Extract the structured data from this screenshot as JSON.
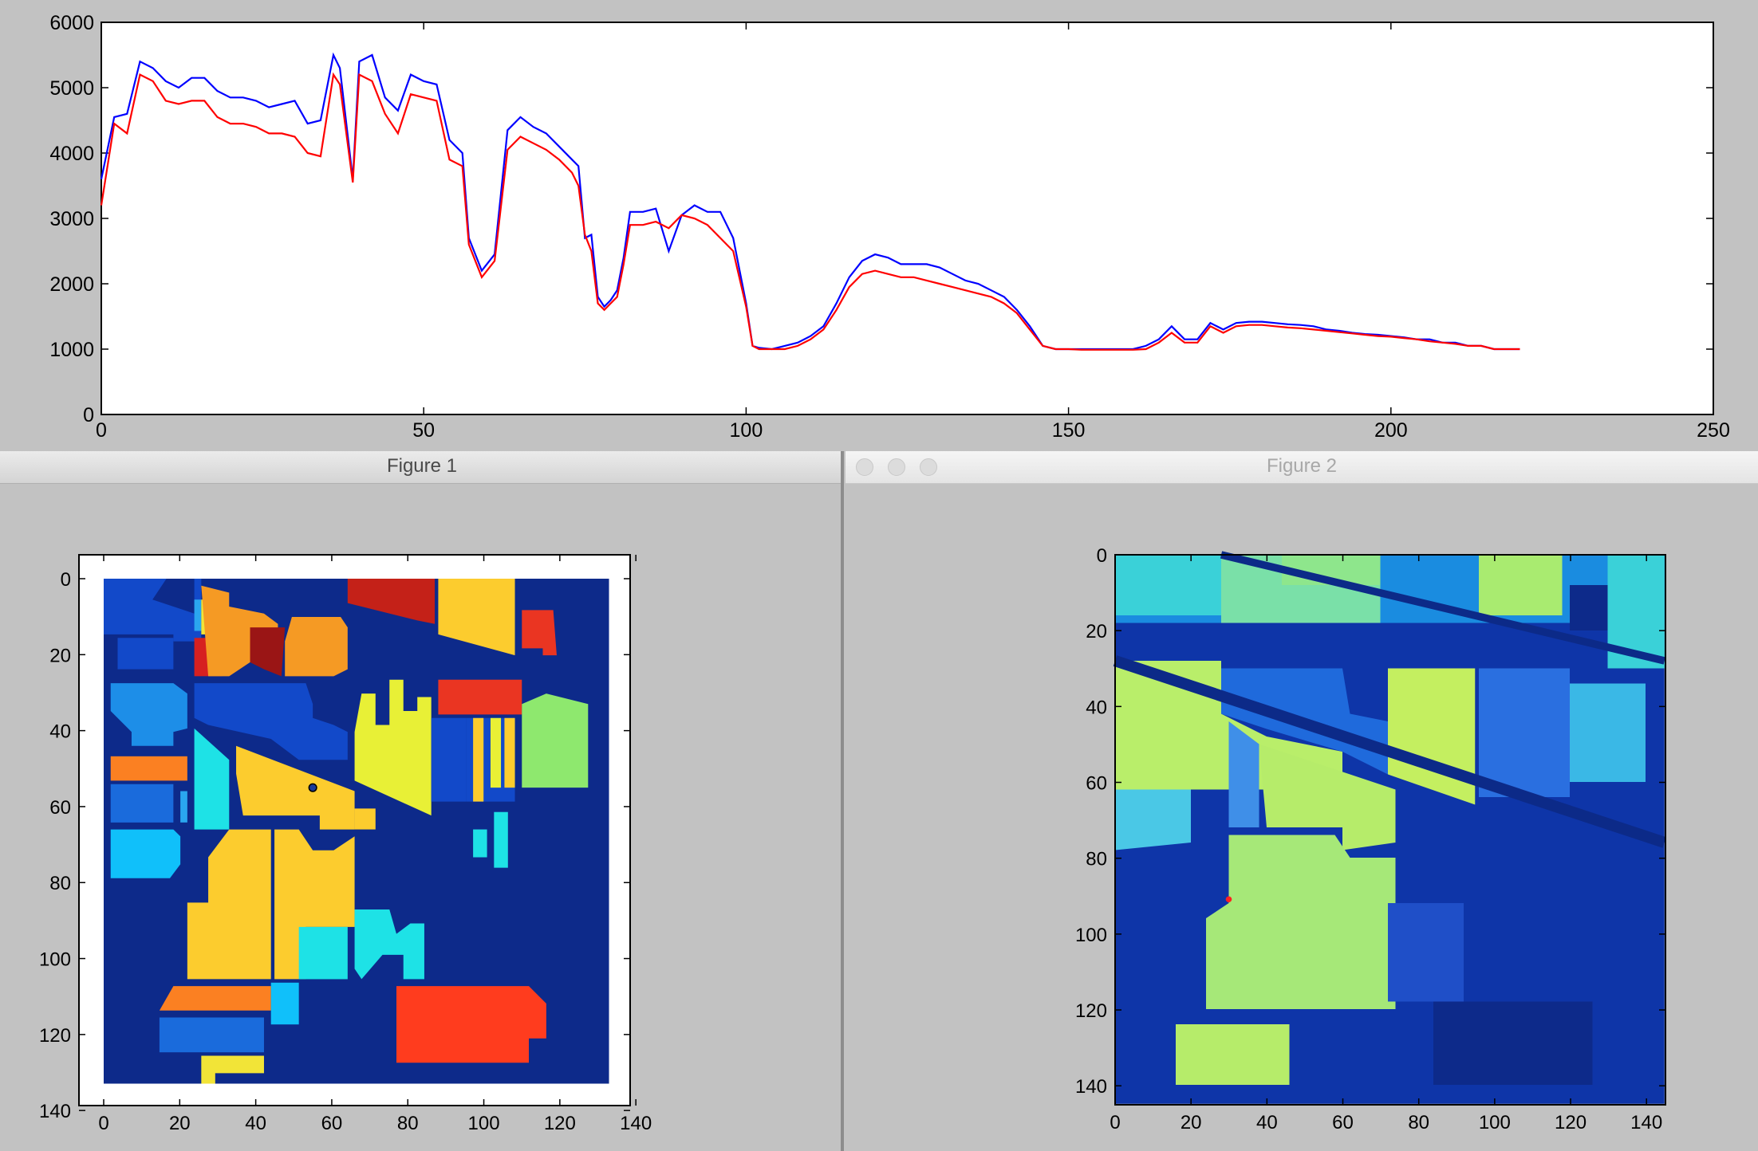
{
  "windows": {
    "figure1": {
      "title": "Figure 1"
    },
    "figure2": {
      "title": "Figure 2"
    }
  },
  "colors": {
    "desktop_bg": "#c2c2c2",
    "series_blue": "#0000ff",
    "series_red": "#ff0000",
    "map_background": "#0d2a8a"
  },
  "chart_data": [
    {
      "id": "spectrum",
      "type": "line",
      "xlim": [
        0,
        250
      ],
      "ylim": [
        0,
        6000
      ],
      "xticks": [
        0,
        50,
        100,
        150,
        200,
        250
      ],
      "yticks": [
        0,
        1000,
        2000,
        3000,
        4000,
        5000,
        6000
      ],
      "xtick_labels": [
        "0",
        "50",
        "100",
        "150",
        "200",
        "250"
      ],
      "ytick_labels": [
        "0",
        "1000",
        "2000",
        "3000",
        "4000",
        "5000",
        "6000"
      ],
      "grid": false,
      "series": [
        {
          "color": "#0000ff",
          "x": [
            0,
            2,
            4,
            6,
            8,
            10,
            12,
            14,
            16,
            18,
            20,
            22,
            24,
            26,
            28,
            30,
            32,
            34,
            36,
            37,
            39,
            40,
            42,
            44,
            46,
            48,
            50,
            52,
            54,
            56,
            57,
            59,
            61,
            63,
            65,
            67,
            69,
            71,
            73,
            74,
            75,
            76,
            77,
            78,
            79,
            80,
            81,
            82,
            84,
            86,
            88,
            90,
            92,
            94,
            96,
            98,
            100,
            101,
            102,
            104,
            106,
            108,
            110,
            112,
            114,
            116,
            118,
            120,
            122,
            124,
            126,
            128,
            130,
            132,
            134,
            136,
            138,
            140,
            142,
            144,
            146,
            148,
            150,
            152,
            154,
            156,
            158,
            160,
            162,
            164,
            166,
            168,
            170,
            172,
            174,
            176,
            178,
            180,
            182,
            184,
            186,
            188,
            190,
            192,
            194,
            196,
            198,
            200,
            202,
            204,
            206,
            208,
            210,
            212,
            214,
            216,
            218,
            220
          ],
          "y": [
            3600,
            4550,
            4600,
            5400,
            5300,
            5100,
            5000,
            5150,
            5150,
            4950,
            4850,
            4850,
            4800,
            4700,
            4750,
            4800,
            4450,
            4500,
            5500,
            5300,
            3600,
            5400,
            5500,
            4850,
            4650,
            5200,
            5100,
            5050,
            4200,
            4000,
            2700,
            2200,
            2450,
            4350,
            4550,
            4400,
            4300,
            4100,
            3900,
            3800,
            2700,
            2750,
            1800,
            1650,
            1750,
            1900,
            2400,
            3100,
            3100,
            3150,
            2500,
            3050,
            3200,
            3100,
            3100,
            2700,
            1700,
            1050,
            1020,
            1000,
            1050,
            1100,
            1200,
            1350,
            1700,
            2100,
            2350,
            2450,
            2400,
            2300,
            2300,
            2300,
            2250,
            2150,
            2050,
            2000,
            1900,
            1800,
            1600,
            1350,
            1050,
            1000,
            1000,
            1000,
            1000,
            1000,
            1000,
            1000,
            1050,
            1150,
            1350,
            1150,
            1150,
            1400,
            1300,
            1400,
            1420,
            1420,
            1400,
            1380,
            1370,
            1350,
            1300,
            1280,
            1250,
            1230,
            1220,
            1200,
            1180,
            1150,
            1150,
            1100,
            1100,
            1050,
            1050,
            1000,
            1000,
            1000
          ]
        },
        {
          "color": "#ff0000",
          "x": [
            0,
            2,
            4,
            6,
            8,
            10,
            12,
            14,
            16,
            18,
            20,
            22,
            24,
            26,
            28,
            30,
            32,
            34,
            36,
            37,
            39,
            40,
            42,
            44,
            46,
            48,
            50,
            52,
            54,
            56,
            57,
            59,
            61,
            63,
            65,
            67,
            69,
            71,
            73,
            74,
            75,
            76,
            77,
            78,
            79,
            80,
            81,
            82,
            84,
            86,
            88,
            90,
            92,
            94,
            96,
            98,
            100,
            101,
            102,
            104,
            106,
            108,
            110,
            112,
            114,
            116,
            118,
            120,
            122,
            124,
            126,
            128,
            130,
            132,
            134,
            136,
            138,
            140,
            142,
            144,
            146,
            148,
            150,
            152,
            154,
            156,
            158,
            160,
            162,
            164,
            166,
            168,
            170,
            172,
            174,
            176,
            178,
            180,
            182,
            184,
            186,
            188,
            190,
            192,
            194,
            196,
            198,
            200,
            202,
            204,
            206,
            208,
            210,
            212,
            214,
            216,
            218,
            220
          ],
          "y": [
            3200,
            4450,
            4300,
            5200,
            5100,
            4800,
            4750,
            4800,
            4800,
            4550,
            4450,
            4450,
            4400,
            4300,
            4300,
            4250,
            4000,
            3950,
            5200,
            5050,
            3550,
            5200,
            5100,
            4600,
            4300,
            4900,
            4850,
            4800,
            3900,
            3800,
            2600,
            2100,
            2350,
            4050,
            4250,
            4150,
            4050,
            3900,
            3700,
            3500,
            2750,
            2500,
            1700,
            1600,
            1700,
            1800,
            2300,
            2900,
            2900,
            2950,
            2850,
            3050,
            3000,
            2900,
            2700,
            2500,
            1650,
            1050,
            1000,
            1000,
            1000,
            1050,
            1150,
            1300,
            1600,
            1950,
            2150,
            2200,
            2150,
            2100,
            2100,
            2050,
            2000,
            1950,
            1900,
            1850,
            1800,
            1700,
            1550,
            1300,
            1050,
            1000,
            1000,
            990,
            990,
            990,
            990,
            990,
            1000,
            1100,
            1250,
            1100,
            1100,
            1350,
            1250,
            1350,
            1370,
            1370,
            1350,
            1330,
            1320,
            1300,
            1280,
            1260,
            1240,
            1220,
            1200,
            1190,
            1170,
            1150,
            1120,
            1100,
            1080,
            1050,
            1050,
            1000,
            1000,
            1000
          ]
        }
      ]
    },
    {
      "id": "figure1-labels",
      "type": "heatmap",
      "xlim": [
        0,
        145
      ],
      "ylim": [
        145,
        0
      ],
      "xticks": [
        0,
        20,
        40,
        60,
        80,
        100,
        120,
        140
      ],
      "yticks": [
        0,
        20,
        40,
        60,
        80,
        100,
        120,
        140
      ],
      "xtick_labels": [
        "0",
        "20",
        "40",
        "60",
        "80",
        "100",
        "120",
        "140"
      ],
      "ytick_labels": [
        "0",
        "20",
        "40",
        "60",
        "80",
        "100",
        "120",
        "140"
      ],
      "marker": {
        "x": 60,
        "y": 60
      }
    },
    {
      "id": "figure2-band",
      "type": "heatmap",
      "xlim": [
        0,
        145
      ],
      "ylim": [
        145,
        0
      ],
      "xticks": [
        0,
        20,
        40,
        60,
        80,
        100,
        120,
        140
      ],
      "yticks": [
        0,
        20,
        40,
        60,
        80,
        100,
        120,
        140
      ],
      "xtick_labels": [
        "0",
        "20",
        "40",
        "60",
        "80",
        "100",
        "120",
        "140"
      ],
      "ytick_labels": [
        "0",
        "20",
        "40",
        "60",
        "80",
        "100",
        "120",
        "140"
      ],
      "marker": {
        "x": 30,
        "y": 91
      }
    }
  ]
}
